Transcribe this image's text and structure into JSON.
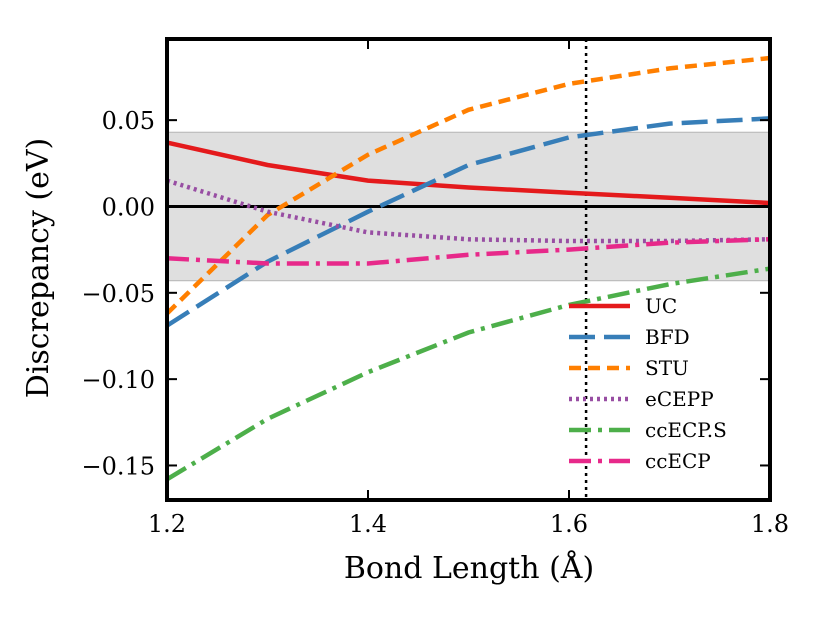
{
  "chart_data": {
    "type": "line",
    "xlabel": "Bond Length (Å)",
    "ylabel": "Discrepancy (eV)",
    "xlim": [
      1.2,
      1.8
    ],
    "ylim": [
      -0.17,
      0.097
    ],
    "x_ticks": [
      1.2,
      1.4,
      1.6,
      1.8
    ],
    "x_tick_labels": [
      "1.2",
      "1.4",
      "1.6",
      "1.8"
    ],
    "y_ticks": [
      -0.15,
      -0.1,
      -0.05,
      0.0,
      0.05
    ],
    "y_tick_labels": [
      "−0.15",
      "−0.10",
      "−0.05",
      "0.00",
      "0.05"
    ],
    "shaded_band": [
      -0.043,
      0.043
    ],
    "zero_line": 0.0,
    "vertical_reference_x": 1.617,
    "legend_position": "lower-right",
    "series": [
      {
        "name": "UC",
        "color": "#e41a1c",
        "dash": "solid",
        "x": [
          1.2,
          1.3,
          1.4,
          1.5,
          1.6,
          1.7,
          1.8
        ],
        "y": [
          0.037,
          0.024,
          0.015,
          0.011,
          0.008,
          0.005,
          0.002
        ]
      },
      {
        "name": "BFD",
        "color": "#377eb8",
        "dash": "longdash",
        "x": [
          1.2,
          1.3,
          1.4,
          1.5,
          1.6,
          1.7,
          1.8
        ],
        "y": [
          -0.069,
          -0.032,
          -0.003,
          0.024,
          0.04,
          0.048,
          0.051
        ]
      },
      {
        "name": "STU",
        "color": "#ff7f00",
        "dash": "dash",
        "x": [
          1.2,
          1.3,
          1.4,
          1.5,
          1.6,
          1.7,
          1.8
        ],
        "y": [
          -0.062,
          -0.005,
          0.03,
          0.056,
          0.071,
          0.08,
          0.086
        ]
      },
      {
        "name": "eCEPP",
        "color": "#984ea3",
        "dash": "dot",
        "x": [
          1.2,
          1.3,
          1.4,
          1.5,
          1.6,
          1.7,
          1.8
        ],
        "y": [
          0.015,
          -0.003,
          -0.015,
          -0.019,
          -0.02,
          -0.02,
          -0.019
        ]
      },
      {
        "name": "ccECP.S",
        "color": "#4daf4a",
        "dash": "dashdot",
        "x": [
          1.2,
          1.3,
          1.4,
          1.5,
          1.6,
          1.7,
          1.8
        ],
        "y": [
          -0.158,
          -0.123,
          -0.096,
          -0.073,
          -0.057,
          -0.045,
          -0.036
        ]
      },
      {
        "name": "ccECP",
        "color": "#e7298a",
        "dash": "dashdot",
        "x": [
          1.2,
          1.3,
          1.4,
          1.5,
          1.6,
          1.7,
          1.8
        ],
        "y": [
          -0.03,
          -0.033,
          -0.033,
          -0.028,
          -0.025,
          -0.021,
          -0.019
        ]
      }
    ]
  }
}
